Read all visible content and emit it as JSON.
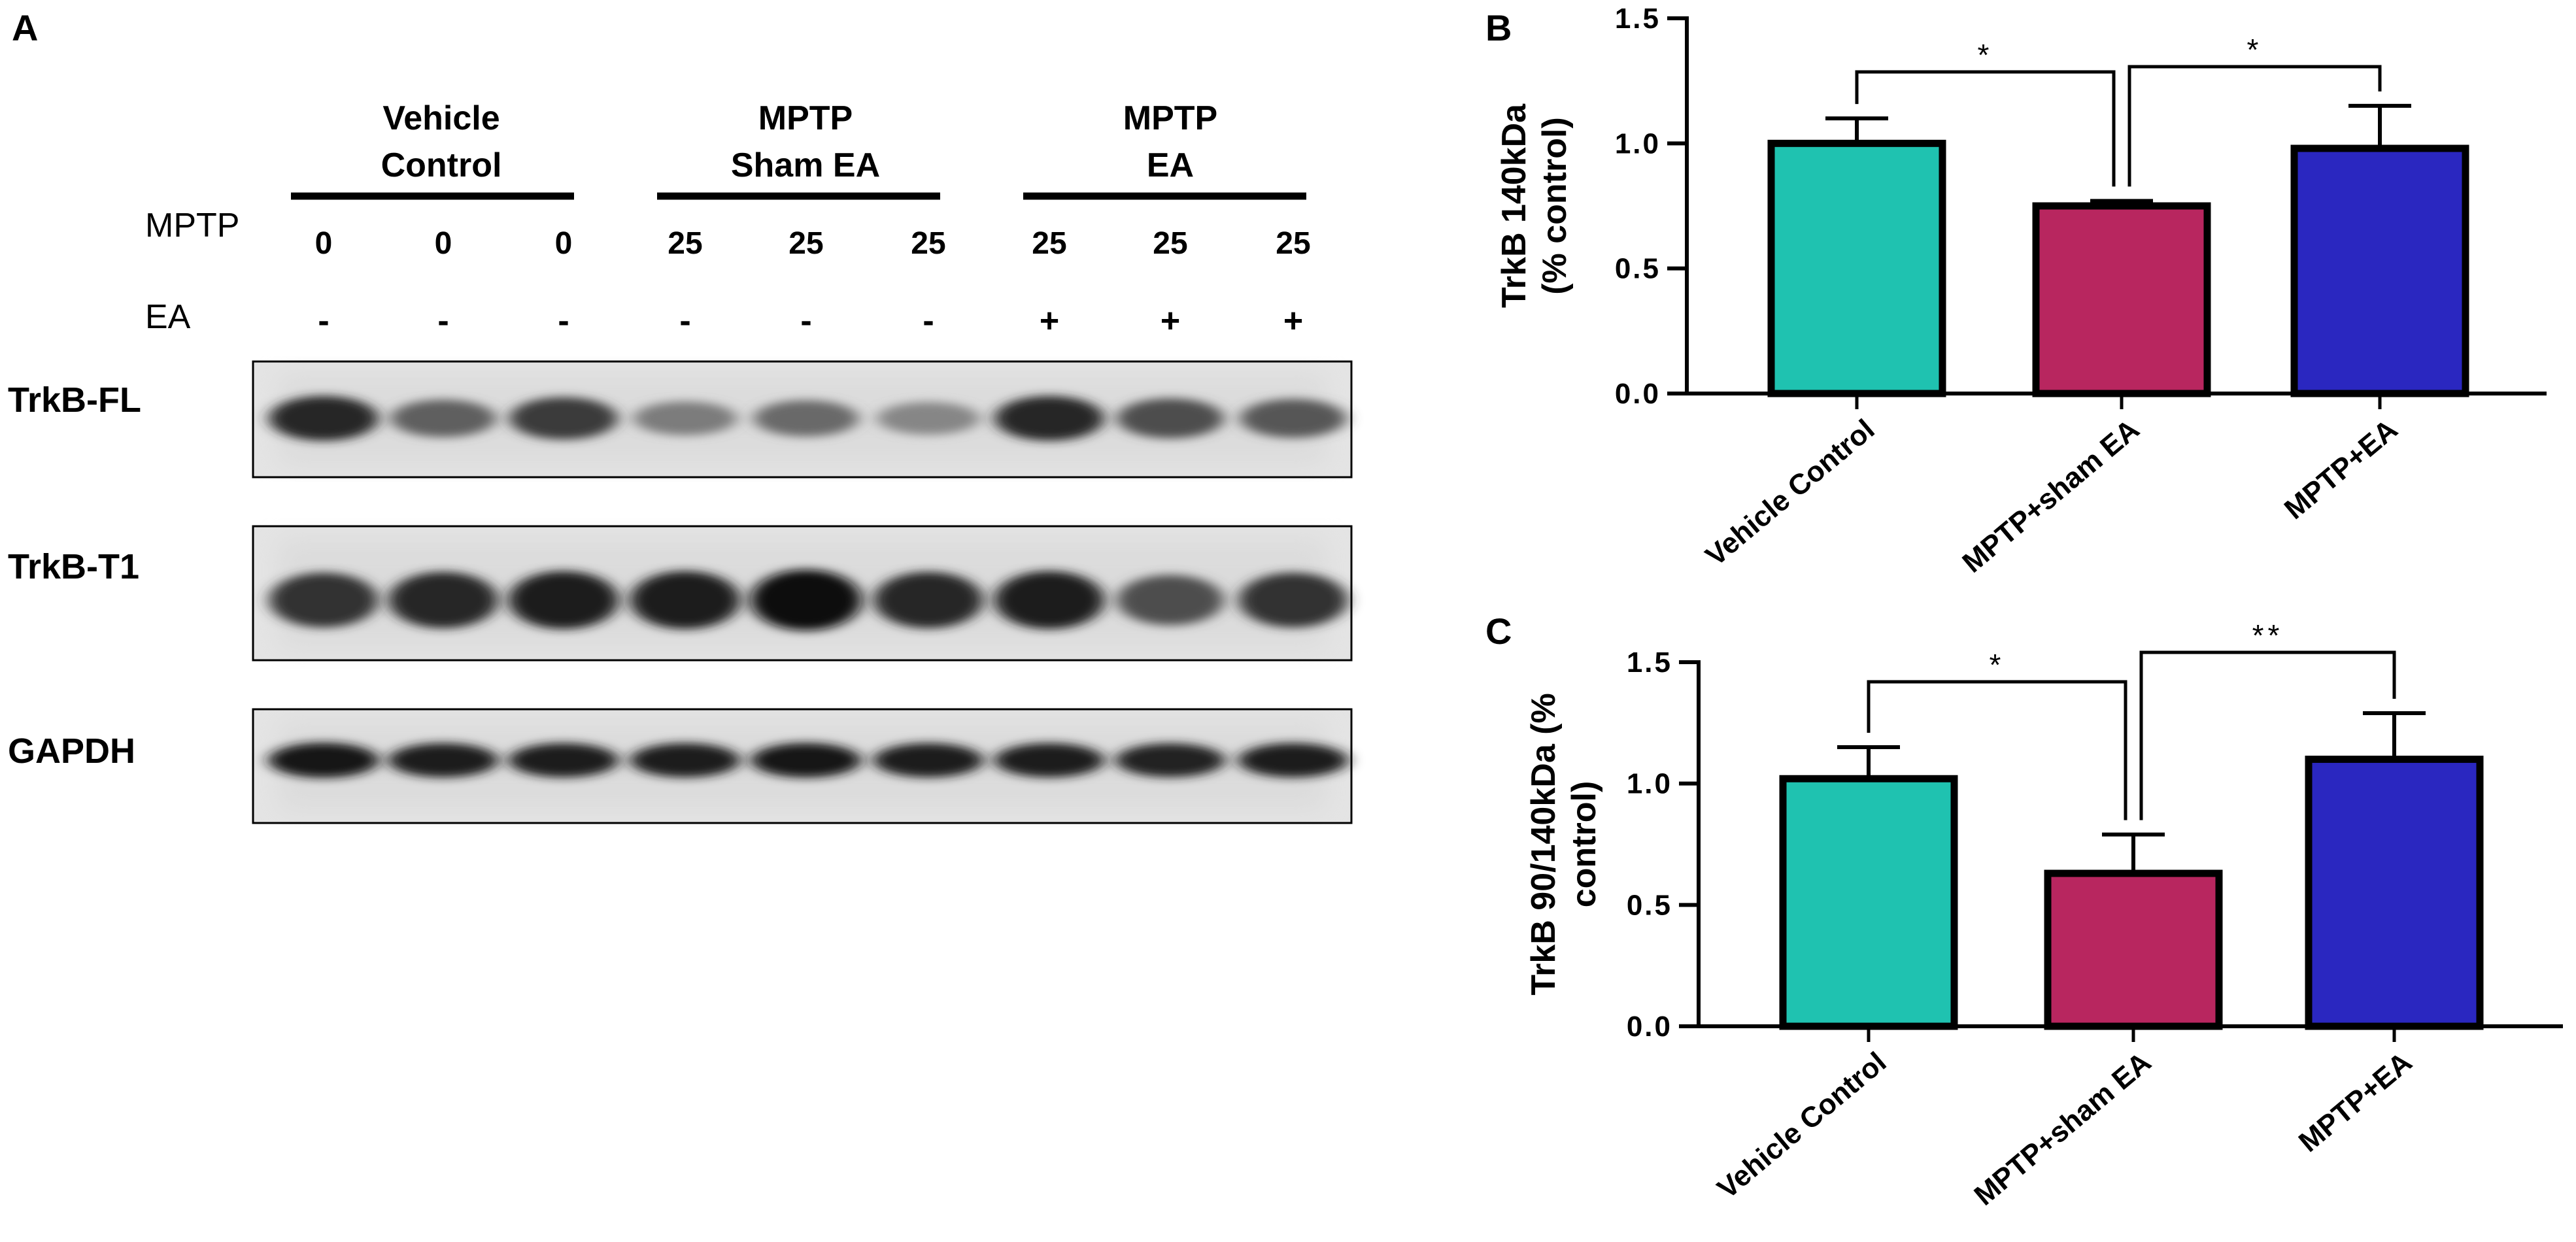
{
  "panels": {
    "A": "A",
    "B": "B",
    "C": "C"
  },
  "blot": {
    "groups": [
      {
        "line1": "Vehicle",
        "line2": "Control"
      },
      {
        "line1": "MPTP",
        "line2": "Sham EA"
      },
      {
        "line1": "MPTP",
        "line2": "EA"
      }
    ],
    "row_labels": {
      "mptp": "MPTP",
      "ea": "EA"
    },
    "mptp_values": [
      "0",
      "0",
      "0",
      "25",
      "25",
      "25",
      "25",
      "25",
      "25"
    ],
    "ea_values": [
      "-",
      "-",
      "-",
      "-",
      "-",
      "-",
      "+",
      "+",
      "+"
    ],
    "bands": [
      {
        "label": "TrkB-FL",
        "intensity": [
          0.85,
          0.55,
          0.75,
          0.4,
          0.5,
          0.35,
          0.85,
          0.65,
          0.6
        ]
      },
      {
        "label": "TrkB-T1",
        "intensity": [
          0.8,
          0.85,
          0.9,
          0.9,
          1.0,
          0.85,
          0.9,
          0.65,
          0.8
        ]
      },
      {
        "label": "GAPDH",
        "intensity": [
          0.95,
          0.9,
          0.9,
          0.9,
          0.92,
          0.9,
          0.9,
          0.88,
          0.9
        ]
      }
    ]
  },
  "chart_data": [
    {
      "type": "bar",
      "panel": "B",
      "categories": [
        "Vehicle Control",
        "MPTP+sham EA",
        "MPTP+EA"
      ],
      "values": [
        1.0,
        0.75,
        0.98
      ],
      "errors": [
        0.1,
        0.02,
        0.17
      ],
      "colors": [
        "#1fc2b0",
        "#b8265f",
        "#2a27c0"
      ],
      "ylabel_line1": "TrkB 140kDa",
      "ylabel_line2": "(% control)",
      "ylim": [
        0,
        1.5
      ],
      "yticks": [
        "0.0",
        "0.5",
        "1.0",
        "1.5"
      ],
      "significance": [
        {
          "from": 0,
          "to": 1,
          "label": "*"
        },
        {
          "from": 1,
          "to": 2,
          "label": "*"
        }
      ]
    },
    {
      "type": "bar",
      "panel": "C",
      "categories": [
        "Vehicle Control",
        "MPTP+sham EA",
        "MPTP+EA"
      ],
      "values": [
        1.02,
        0.63,
        1.1
      ],
      "errors": [
        0.13,
        0.16,
        0.19
      ],
      "colors": [
        "#1fc2b0",
        "#b8265f",
        "#2a27c0"
      ],
      "ylabel_line1": "TrkB 90/140kDa  (%",
      "ylabel_line2": "control)",
      "ylim": [
        0,
        1.5
      ],
      "yticks": [
        "0.0",
        "0.5",
        "1.0",
        "1.5"
      ],
      "significance": [
        {
          "from": 0,
          "to": 1,
          "label": "*"
        },
        {
          "from": 1,
          "to": 2,
          "label": "**"
        }
      ]
    }
  ]
}
